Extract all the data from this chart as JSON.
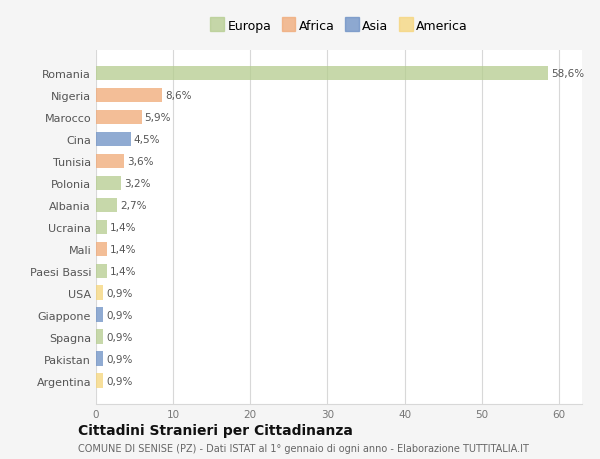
{
  "categories": [
    "Romania",
    "Nigeria",
    "Marocco",
    "Cina",
    "Tunisia",
    "Polonia",
    "Albania",
    "Ucraina",
    "Mali",
    "Paesi Bassi",
    "USA",
    "Giappone",
    "Spagna",
    "Pakistan",
    "Argentina"
  ],
  "values": [
    58.6,
    8.6,
    5.9,
    4.5,
    3.6,
    3.2,
    2.7,
    1.4,
    1.4,
    1.4,
    0.9,
    0.9,
    0.9,
    0.9,
    0.9
  ],
  "labels": [
    "58,6%",
    "8,6%",
    "5,9%",
    "4,5%",
    "3,6%",
    "3,2%",
    "2,7%",
    "1,4%",
    "1,4%",
    "1,4%",
    "0,9%",
    "0,9%",
    "0,9%",
    "0,9%",
    "0,9%"
  ],
  "colors": [
    "#b5cc8e",
    "#f0a875",
    "#f0a875",
    "#6b8fc4",
    "#f0a875",
    "#b5cc8e",
    "#b5cc8e",
    "#b5cc8e",
    "#f0a875",
    "#b5cc8e",
    "#f5d57a",
    "#6b8fc4",
    "#b5cc8e",
    "#6b8fc4",
    "#f5d57a"
  ],
  "legend_labels": [
    "Europa",
    "Africa",
    "Asia",
    "America"
  ],
  "legend_colors": [
    "#b5cc8e",
    "#f0a875",
    "#6b8fc4",
    "#f5d57a"
  ],
  "xlim": [
    0,
    63
  ],
  "xticks": [
    0,
    10,
    20,
    30,
    40,
    50,
    60
  ],
  "title": "Cittadini Stranieri per Cittadinanza",
  "subtitle": "COMUNE DI SENISE (PZ) - Dati ISTAT al 1° gennaio di ogni anno - Elaborazione TUTTITALIA.IT",
  "bg_color": "#f5f5f5",
  "bar_bg_color": "#ffffff",
  "grid_color": "#d8d8d8",
  "bar_alpha": 0.75,
  "bar_height": 0.65
}
